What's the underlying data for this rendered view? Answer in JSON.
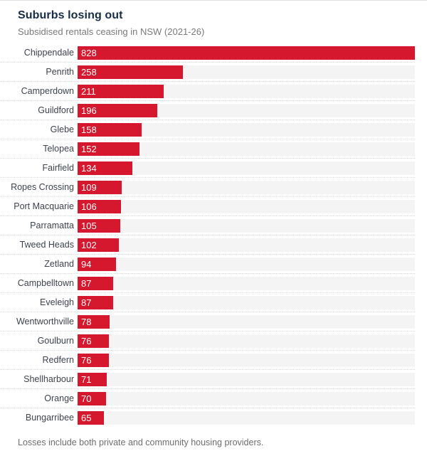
{
  "header": {
    "title": "Suburbs losing out",
    "subtitle": "Subsidised rentals ceasing in NSW (2021-26)"
  },
  "footer": {
    "note": "Losses include both private and community housing providers."
  },
  "colors": {
    "bar": "#d6182e",
    "track": "#f4f4f4",
    "title": "#182c44",
    "subtitle": "#7a7a7a",
    "label": "#3d434d",
    "value": "#ffffff",
    "note": "#6e6e6e",
    "separator": "#d8d8d8",
    "page_top_border": "#e0e0e0"
  },
  "chart_data": {
    "type": "bar",
    "orientation": "horizontal",
    "title": "Suburbs losing out",
    "subtitle": "Subsidised rentals ceasing in NSW (2021-26)",
    "note": "Losses include both private and community housing providers.",
    "categories": [
      "Chippendale",
      "Penrith",
      "Camperdown",
      "Guildford",
      "Glebe",
      "Telopea",
      "Fairfield",
      "Ropes Crossing",
      "Port Macquarie",
      "Parramatta",
      "Tweed Heads",
      "Zetland",
      "Campbelltown",
      "Eveleigh",
      "Wentworthville",
      "Goulburn",
      "Redfern",
      "Shellharbour",
      "Orange",
      "Bungarribee"
    ],
    "values": [
      828,
      258,
      211,
      196,
      158,
      152,
      134,
      109,
      106,
      105,
      102,
      94,
      87,
      87,
      78,
      76,
      76,
      71,
      70,
      65
    ],
    "xlabel": "",
    "ylabel": "",
    "xlim": [
      0,
      828
    ],
    "grid": false,
    "legend": false,
    "value_labels": "inside-start"
  }
}
